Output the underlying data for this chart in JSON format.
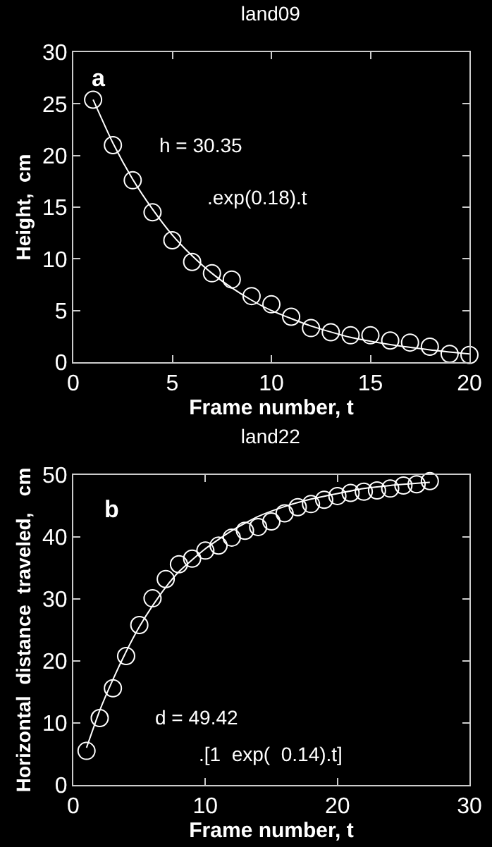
{
  "chart_data": [
    {
      "type": "scatter",
      "title": "land09",
      "xlabel": "Frame number, t",
      "ylabel": "Height,  cm",
      "xlim": [
        0,
        20
      ],
      "xticks": [
        0,
        5,
        10,
        15,
        20
      ],
      "ylim": [
        0,
        30
      ],
      "yticks": [
        0,
        5,
        10,
        15,
        20,
        25,
        30
      ],
      "grid": false,
      "annotations": [
        "a",
        "h = 30.35",
        ".exp(0.18).t"
      ],
      "series": [
        {
          "marker": "circle",
          "color": "#ffffff",
          "x": [
            1,
            2,
            3,
            4,
            5,
            6,
            7,
            8,
            9,
            10,
            11,
            12,
            13,
            14,
            15,
            16,
            17,
            18,
            19,
            20
          ],
          "values": [
            25.4,
            21,
            17.6,
            14.5,
            11.8,
            9.7,
            8.6,
            8.0,
            6.4,
            5.6,
            4.4,
            3.3,
            2.9,
            2.6,
            2.6,
            2.1,
            1.9,
            1.5,
            0.8,
            0.7
          ]
        },
        {
          "type": "line",
          "marker": "none",
          "line_style": "solid",
          "color": "#ffffff",
          "x": [
            1,
            2,
            3,
            4,
            5,
            6,
            7,
            8,
            9,
            10,
            12,
            14,
            16,
            18,
            20
          ],
          "values": [
            25.4,
            21.2,
            17.7,
            14.8,
            12.3,
            10.3,
            8.6,
            7.2,
            6.0,
            5.0,
            3.5,
            2.4,
            1.7,
            1.2,
            0.8
          ]
        }
      ]
    },
    {
      "type": "scatter",
      "title": "land22",
      "xlabel": "Frame number, t",
      "ylabel": "Horizontal  distance  traveled,   cm",
      "xlim": [
        0,
        30
      ],
      "xticks": [
        0,
        10,
        20,
        30
      ],
      "ylim": [
        0,
        50
      ],
      "yticks": [
        0,
        10,
        20,
        30,
        40,
        50
      ],
      "grid": false,
      "annotations": [
        "b",
        "d = 49.42",
        ".[1  exp(  0.14).t]"
      ],
      "series": [
        {
          "marker": "circle",
          "color": "#ffffff",
          "x": [
            1,
            2,
            3,
            4,
            5,
            6,
            7,
            8,
            9,
            10,
            11,
            12,
            13,
            14,
            15,
            16,
            17,
            18,
            19,
            20,
            21,
            22,
            23,
            24,
            25,
            26,
            27
          ],
          "values": [
            5.5,
            10.8,
            15.6,
            20.8,
            25.8,
            30.1,
            33.2,
            35.6,
            36.5,
            37.8,
            38.6,
            39.9,
            41.0,
            41.6,
            42.5,
            43.8,
            44.8,
            45.3,
            46.0,
            46.6,
            47.1,
            47.3,
            47.5,
            47.8,
            48.3,
            48.5,
            49.0
          ]
        },
        {
          "type": "line",
          "marker": "none",
          "line_style": "solid",
          "color": "#ffffff",
          "x": [
            1,
            2,
            3,
            4,
            5,
            6,
            7,
            8,
            10,
            12,
            14,
            16,
            18,
            20,
            22,
            24,
            27
          ],
          "values": [
            6.0,
            12.0,
            17.0,
            21.5,
            25.5,
            28.9,
            31.9,
            34.4,
            38.1,
            41.0,
            43.3,
            44.9,
            46.1,
            47.0,
            47.8,
            48.3,
            48.8
          ]
        }
      ]
    }
  ]
}
